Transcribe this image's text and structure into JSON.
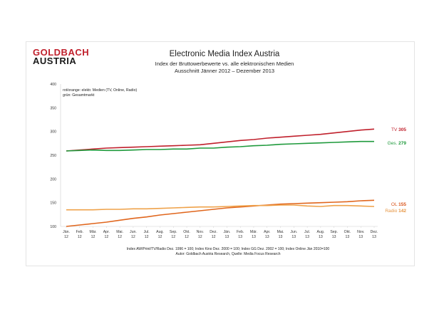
{
  "header": {
    "logo_line1": "GOLDBACH",
    "logo_line2": "AUSTRIA",
    "title": "Electronic Media Index Austria",
    "subtitle1": "Index der Bruttowerbewerte vs. alle elektronischen Medien",
    "subtitle2": "Ausschnitt Jänner 2012 –  Dezember 2013"
  },
  "notes": {
    "line1": "rot/orange: elektr. Medien (TV, Online, Radio)",
    "line2": "grün: Gesamtmarkt"
  },
  "footer": {
    "line1": "Index AW/Print/TV/Radio Dez. 1996 = 100; Index Kino Dez. 2000 = 100; Index GG Dez. 2002 = 100; Index Online Jän 2010=100",
    "line2": "Autor: Goldbach Austria Research, Quelle: Media Focus Research"
  },
  "chart_data": {
    "type": "line",
    "ylim": [
      100,
      400
    ],
    "yticks": [
      100,
      150,
      200,
      250,
      300,
      350,
      400
    ],
    "grid": false,
    "categories": [
      [
        "Jän.",
        "12"
      ],
      [
        "Feb.",
        "12"
      ],
      [
        "Mär.",
        "12"
      ],
      [
        "Apr.",
        "12"
      ],
      [
        "Mai.",
        "12"
      ],
      [
        "Jun.",
        "12"
      ],
      [
        "Jul.",
        "12"
      ],
      [
        "Aug.",
        "12"
      ],
      [
        "Sep.",
        "12"
      ],
      [
        "Okt.",
        "12"
      ],
      [
        "Nov.",
        "12"
      ],
      [
        "Dez.",
        "12"
      ],
      [
        "Jän.",
        "13"
      ],
      [
        "Feb.",
        "13"
      ],
      [
        "Mär.",
        "13"
      ],
      [
        "Apr.",
        "13"
      ],
      [
        "Mai.",
        "13"
      ],
      [
        "Jun.",
        "13"
      ],
      [
        "Jul.",
        "13"
      ],
      [
        "Aug.",
        "13"
      ],
      [
        "Sep.",
        "13"
      ],
      [
        "Okt.",
        "13"
      ],
      [
        "Nov.",
        "13"
      ],
      [
        "Dez.",
        "13"
      ]
    ],
    "series": [
      {
        "name": "TV",
        "end_label": "TV",
        "end_value": "305",
        "color": "#c0202c",
        "label_color": "#c0202c",
        "values": [
          259,
          261,
          263,
          265,
          266,
          267,
          268,
          269,
          270,
          271,
          272,
          275,
          278,
          281,
          283,
          286,
          288,
          290,
          292,
          294,
          297,
          300,
          303,
          305
        ]
      },
      {
        "name": "Ges.",
        "end_label": "Ges.",
        "end_value": "279",
        "color": "#1f9a3c",
        "label_color": "#1f9a3c",
        "values": [
          259,
          260,
          261,
          260,
          260,
          261,
          262,
          262,
          263,
          263,
          265,
          265,
          267,
          268,
          270,
          271,
          273,
          274,
          275,
          276,
          277,
          278,
          279,
          279
        ]
      },
      {
        "name": "OL",
        "end_label": "OL",
        "end_value": "155",
        "color": "#e0661d",
        "label_color": "#d9541a",
        "values": [
          100,
          103,
          106,
          109,
          113,
          117,
          120,
          124,
          127,
          130,
          133,
          136,
          139,
          141,
          143,
          145,
          147,
          148,
          149,
          150,
          151,
          152,
          154,
          155
        ]
      },
      {
        "name": "Radio",
        "end_label": "Radio",
        "end_value": "142",
        "color": "#efa24a",
        "label_color": "#e69440",
        "values": [
          135,
          135,
          135,
          136,
          136,
          137,
          137,
          138,
          139,
          140,
          141,
          141,
          142,
          143,
          144,
          144,
          145,
          145,
          143,
          142,
          144,
          144,
          143,
          142
        ]
      }
    ]
  }
}
